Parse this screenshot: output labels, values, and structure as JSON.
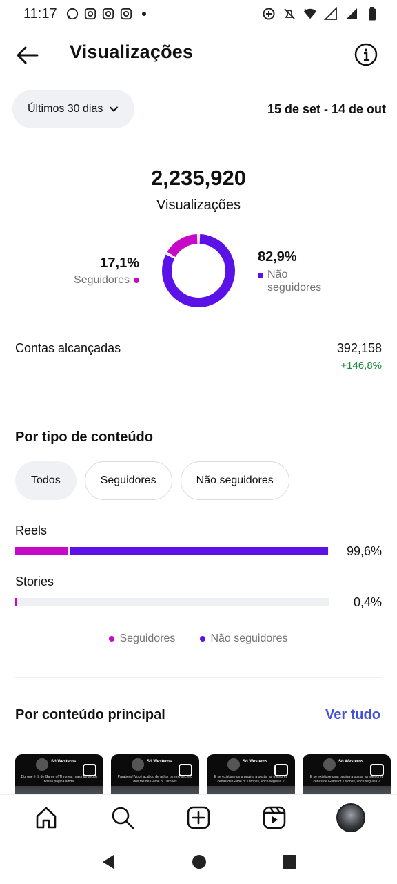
{
  "status_bar": {
    "time": "11:17"
  },
  "header": {
    "title": "Visualizações"
  },
  "filter": {
    "range_label": "Últimos 30 dias",
    "date_range": "15 de set - 14 de out"
  },
  "summary": {
    "total": "2,235,920",
    "total_label": "Visualizações",
    "followers_pct": "17,1%",
    "followers_label": "Seguidores",
    "non_followers_pct": "82,9%",
    "non_followers_label": "Não seguidores",
    "followers_fraction": 0.171,
    "non_followers_fraction": 0.829
  },
  "reach": {
    "label": "Contas alcançadas",
    "value": "392,158",
    "change": "+146,8%"
  },
  "content_type": {
    "title": "Por tipo de conteúdo",
    "chips": [
      "Todos",
      "Seguidores",
      "Não seguidores"
    ],
    "active_chip": "Todos",
    "bars": [
      {
        "label": "Reels",
        "pct_text": "99,6%",
        "total": 0.996,
        "followers_share": 0.17
      },
      {
        "label": "Stories",
        "pct_text": "0,4%",
        "total": 0.004,
        "followers_share": 1.0
      }
    ],
    "legend": [
      "Seguidores",
      "Não seguidores"
    ]
  },
  "top_content": {
    "title": "Por conteúdo principal",
    "see_all": "Ver tudo",
    "thumbnails": [
      {
        "account": "Só Westeros",
        "caption": "Diz que é fã de Game of Thrones, mas não segue nossa página ainda."
      },
      {
        "account": "Só Westeros",
        "caption": "Parabéns! Você acabou de achar o reino secreto dos fãs de Game of Thrones"
      },
      {
        "account": "Só Westeros",
        "caption": "E se existisse uma página a postar as melhores cenas de Game of Thrones, você seguiria ?"
      },
      {
        "account": "Só Westeros",
        "caption": "E se existisse uma página a postar as melhores cenas de Game of Thrones, você seguiria ?"
      }
    ]
  },
  "colors": {
    "followers": "#c70ac7",
    "non_followers": "#5b12e6",
    "positive": "#1a8a3a",
    "link": "#4251d6"
  }
}
